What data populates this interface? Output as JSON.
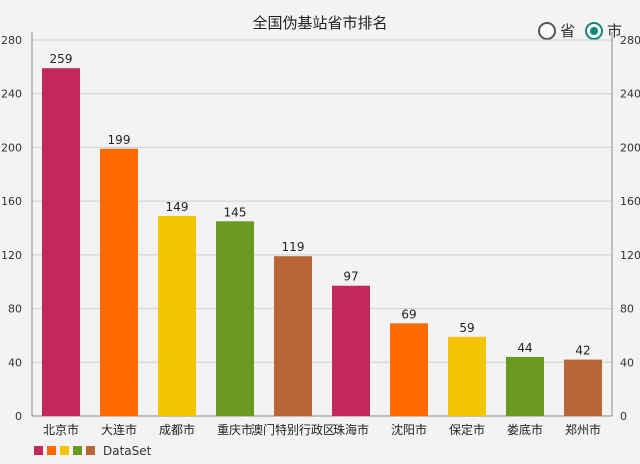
{
  "colors": {
    "bars": [
      "#c2285a",
      "#ff6a00",
      "#f5c400",
      "#6a9a22",
      "#b86635"
    ],
    "accent": "#0f8a78"
  },
  "toggle": {
    "options": [
      {
        "label": "省",
        "selected": false
      },
      {
        "label": "市",
        "selected": true
      }
    ]
  },
  "chart_data": {
    "type": "bar",
    "title": "全国伪基站省市排名",
    "categories": [
      "北京市",
      "大连市",
      "成都市",
      "重庆市",
      "澳门特别行政区",
      "珠海市",
      "沈阳市",
      "保定市",
      "娄底市",
      "郑州市"
    ],
    "series": [
      {
        "name": "DataSet",
        "values": [
          259,
          199,
          149,
          145,
          119,
          97,
          69,
          59,
          44,
          42
        ]
      }
    ],
    "ylim": [
      0,
      280
    ],
    "yticks": [
      0,
      40,
      80,
      120,
      160,
      200,
      240,
      280
    ],
    "grid": true,
    "dual_y_axis": true,
    "legend_position": "bottom-left"
  }
}
